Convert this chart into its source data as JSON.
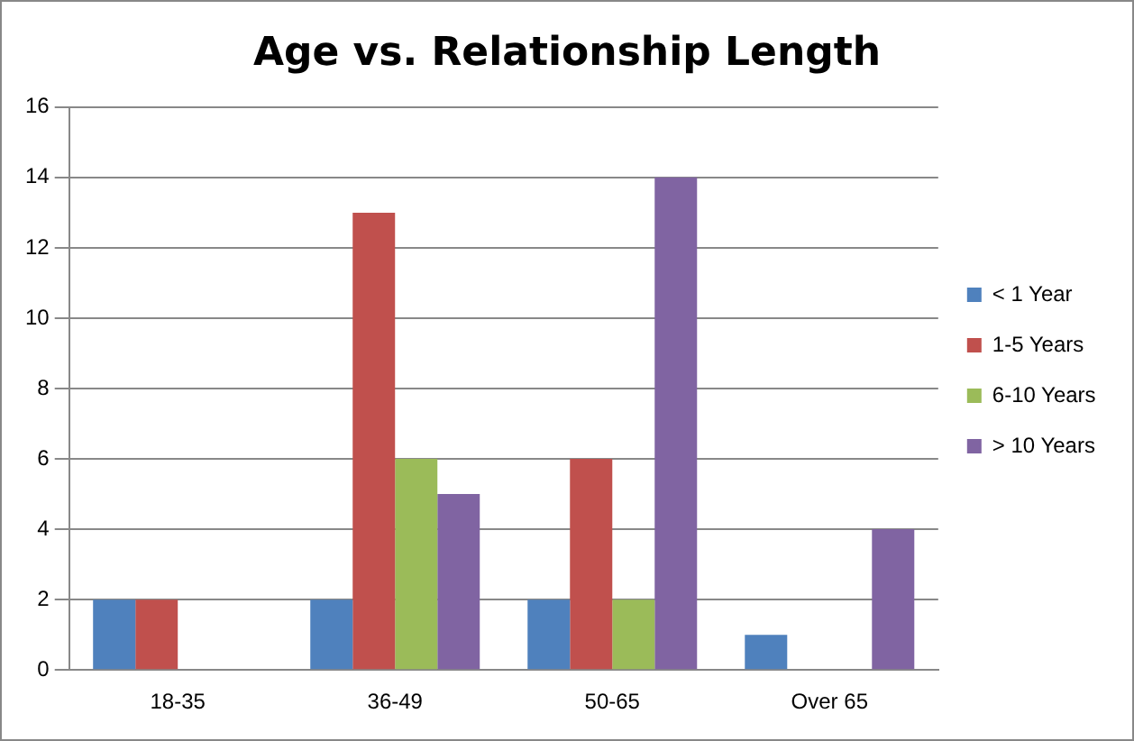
{
  "chart_data": {
    "type": "bar",
    "title": "Age vs. Relationship Length",
    "categories": [
      "18-35",
      "36-49",
      "50-65",
      "Over 65"
    ],
    "series": [
      {
        "name": "< 1 Year",
        "color": "#4f81bd",
        "values": [
          2,
          2,
          2,
          1
        ]
      },
      {
        "name": "1-5 Years",
        "color": "#c0504d",
        "values": [
          2,
          13,
          6,
          0
        ]
      },
      {
        "name": "6-10 Years",
        "color": "#9bbb59",
        "values": [
          0,
          6,
          2,
          0
        ]
      },
      {
        "name": "> 10 Years",
        "color": "#8064a2",
        "values": [
          0,
          5,
          14,
          4
        ]
      }
    ],
    "ylim": [
      0,
      16
    ],
    "yticks": [
      0,
      2,
      4,
      6,
      8,
      10,
      12,
      14,
      16
    ],
    "grid": "y",
    "legend": "right"
  }
}
